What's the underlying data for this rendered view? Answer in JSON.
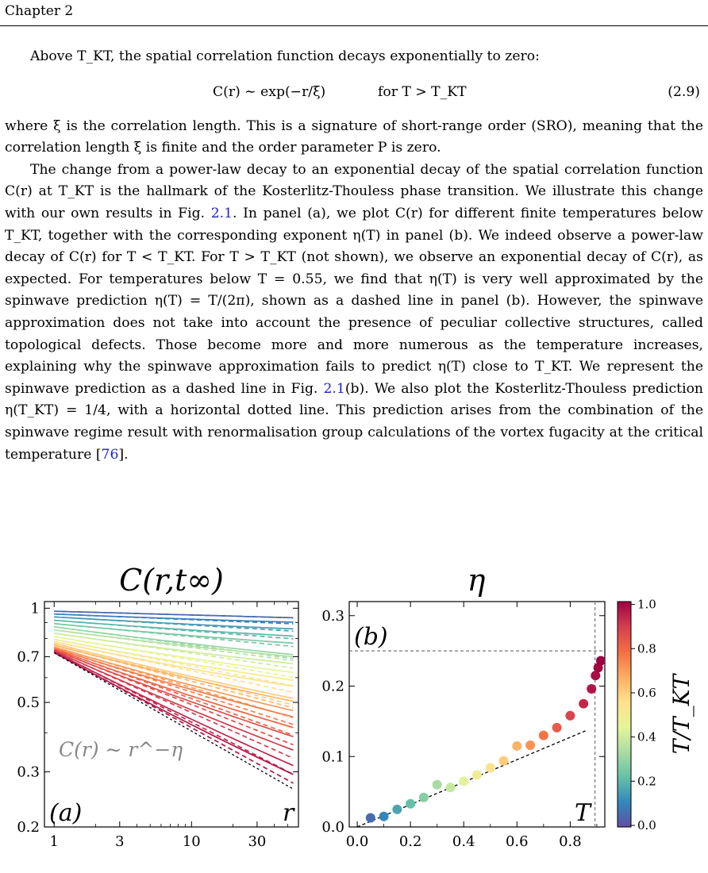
{
  "header": {
    "chapter": "Chapter 2"
  },
  "para1": "Above T_KT, the spatial correlation function decays exponentially to zero:",
  "equation": {
    "main": "C(r) ∼ exp(−r/ξ)",
    "condition": "for T > T_KT",
    "number": "(2.9)"
  },
  "para2": "where ξ is the correlation length. This is a signature of short-range order (SRO), meaning that the correlation length ξ is finite and the order parameter P is zero.",
  "para3": {
    "part1": "The change from a power-law decay to an exponential decay of the spatial correlation function C(r) at T_KT is the hallmark of the Kosterlitz-Thouless phase transition. We illustrate this change with our own results in Fig. ",
    "ref1": "2.1",
    "part2": ". In panel (a), we plot C(r) for different finite temperatures below T_KT, together with the corresponding exponent η(T) in panel (b). We indeed observe a power-law decay of C(r) for T < T_KT. For T > T_KT (not shown), we observe an exponential decay of C(r), as expected. For temperatures below T = 0.55, we find that η(T) is very well approximated by the spinwave prediction η(T) = T/(2π), shown as a dashed line in panel (b). However, the spinwave approximation does not take into account the presence of peculiar collective structures, called topological defects. Those become more and more numerous as the temperature increases, explaining why the spinwave approximation fails to predict η(T) close to T_KT. We represent the spinwave prediction as a dashed line in Fig. ",
    "ref2": "2.1",
    "part3": "(b). We also plot the Kosterlitz-Thouless prediction η(T_KT) = 1/4, with a horizontal dotted line. This prediction arises from the combination of the spinwave regime result with renormalisation group calculations of the vortex fugacity at the critical temperature [",
    "ref3": "76",
    "part4": "]."
  },
  "chart_data": [
    {
      "type": "line",
      "title": "C(r,t∞)",
      "panel_label": "(a)",
      "xlabel": "r",
      "annotation": "C(r) ∼ r^−η",
      "xscale": "log",
      "yscale": "log",
      "xlim": [
        0.85,
        60
      ],
      "ylim": [
        0.2,
        1.05
      ],
      "xticks": [
        1,
        3,
        10,
        30
      ],
      "yticks": [
        0.2,
        0.3,
        0.5,
        0.7,
        1
      ],
      "r_end": 55,
      "series": [
        {
          "t": 0.05,
          "c1": 0.978,
          "eta": 0.012,
          "bend": 0.0
        },
        {
          "t": 0.1,
          "c1": 0.958,
          "eta": 0.018,
          "bend": 0.003
        },
        {
          "t": 0.15,
          "c1": 0.938,
          "eta": 0.026,
          "bend": 0.004
        },
        {
          "t": 0.2,
          "c1": 0.915,
          "eta": 0.034,
          "bend": 0.005
        },
        {
          "t": 0.25,
          "c1": 0.893,
          "eta": 0.042,
          "bend": 0.006
        },
        {
          "t": 0.3,
          "c1": 0.872,
          "eta": 0.058,
          "bend": 0.007
        },
        {
          "t": 0.35,
          "c1": 0.852,
          "eta": 0.056,
          "bend": 0.007
        },
        {
          "t": 0.4,
          "c1": 0.832,
          "eta": 0.064,
          "bend": 0.008
        },
        {
          "t": 0.45,
          "c1": 0.812,
          "eta": 0.075,
          "bend": 0.009
        },
        {
          "t": 0.5,
          "c1": 0.795,
          "eta": 0.085,
          "bend": 0.01
        },
        {
          "t": 0.55,
          "c1": 0.782,
          "eta": 0.093,
          "bend": 0.011
        },
        {
          "t": 0.6,
          "c1": 0.772,
          "eta": 0.113,
          "bend": 0.012
        },
        {
          "t": 0.65,
          "c1": 0.762,
          "eta": 0.115,
          "bend": 0.012
        },
        {
          "t": 0.7,
          "c1": 0.752,
          "eta": 0.13,
          "bend": 0.013
        },
        {
          "t": 0.75,
          "c1": 0.745,
          "eta": 0.14,
          "bend": 0.014
        },
        {
          "t": 0.8,
          "c1": 0.74,
          "eta": 0.158,
          "bend": 0.014
        },
        {
          "t": 0.85,
          "c1": 0.735,
          "eta": 0.174,
          "bend": 0.015
        },
        {
          "t": 0.89,
          "c1": 0.73,
          "eta": 0.197,
          "bend": 0.015
        },
        {
          "t": 0.93,
          "c1": 0.726,
          "eta": 0.225,
          "bend": 0.016
        },
        {
          "t": 0.96,
          "c1": 0.722,
          "eta": 0.24,
          "bend": 0.016
        }
      ],
      "guide": {
        "c1": 0.72,
        "eta": 0.25
      }
    },
    {
      "type": "scatter",
      "title": "η",
      "panel_label": "(b)",
      "xlabel": "T",
      "xlim": [
        -0.03,
        0.93
      ],
      "ylim": [
        0,
        0.32
      ],
      "xticks": [
        0.0,
        0.2,
        0.4,
        0.6,
        0.8
      ],
      "yticks": [
        0.0,
        0.1,
        0.2,
        0.3
      ],
      "points": [
        {
          "x": 0.05,
          "y": 0.013
        },
        {
          "x": 0.1,
          "y": 0.015
        },
        {
          "x": 0.15,
          "y": 0.025
        },
        {
          "x": 0.2,
          "y": 0.033
        },
        {
          "x": 0.25,
          "y": 0.042
        },
        {
          "x": 0.3,
          "y": 0.06
        },
        {
          "x": 0.35,
          "y": 0.056
        },
        {
          "x": 0.4,
          "y": 0.065
        },
        {
          "x": 0.45,
          "y": 0.074
        },
        {
          "x": 0.5,
          "y": 0.084
        },
        {
          "x": 0.55,
          "y": 0.094
        },
        {
          "x": 0.6,
          "y": 0.115
        },
        {
          "x": 0.65,
          "y": 0.116
        },
        {
          "x": 0.7,
          "y": 0.13
        },
        {
          "x": 0.75,
          "y": 0.141
        },
        {
          "x": 0.8,
          "y": 0.158
        },
        {
          "x": 0.85,
          "y": 0.175
        },
        {
          "x": 0.88,
          "y": 0.196
        },
        {
          "x": 0.895,
          "y": 0.215
        },
        {
          "x": 0.905,
          "y": 0.226
        },
        {
          "x": 0.915,
          "y": 0.236
        }
      ],
      "spinwave": {
        "x0": 0.0,
        "x1": 0.86
      },
      "kt_line_y": 0.25,
      "tkt_x": 0.893,
      "colorbar": {
        "label": "T/T_KT",
        "ticks": [
          0.0,
          0.2,
          0.4,
          0.6,
          0.8,
          1.0
        ],
        "colors": [
          "#5e4fa2",
          "#3288bd",
          "#66c2a5",
          "#abdda4",
          "#e6f598",
          "#fee08b",
          "#fdae61",
          "#f46d43",
          "#d53e4f",
          "#9e0142"
        ]
      }
    }
  ]
}
